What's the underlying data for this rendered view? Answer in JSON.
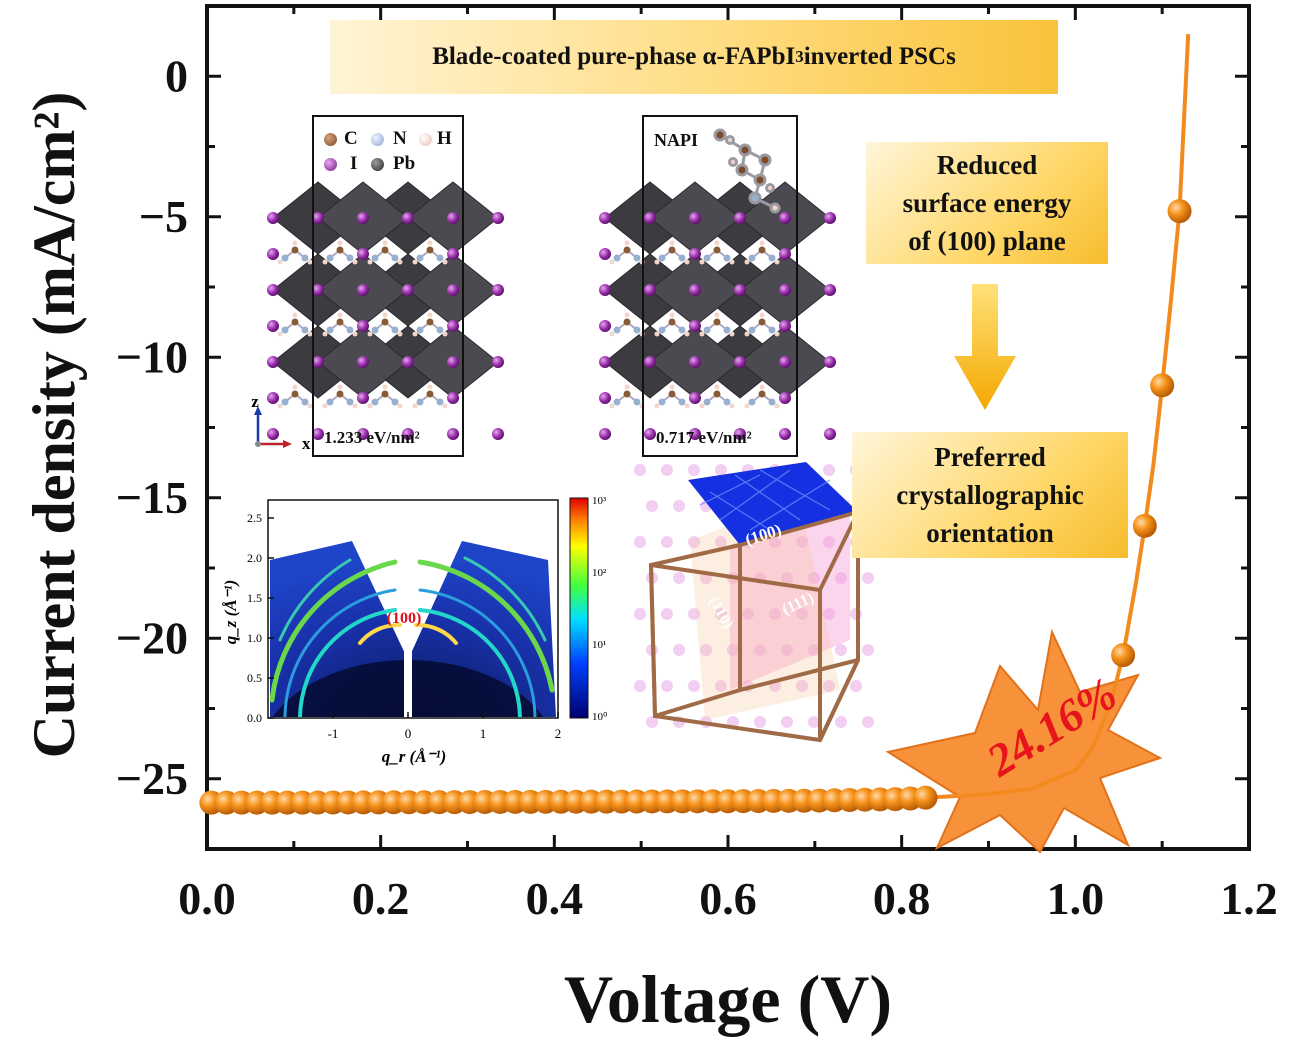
{
  "chart_data": {
    "type": "line",
    "xlabel": "Voltage (V)",
    "ylabel": "Current density (mA/cm²)",
    "xlim": [
      0.0,
      1.2
    ],
    "ylim": [
      -27.5,
      2.5
    ],
    "xticks": [
      "0.0",
      "0.2",
      "0.4",
      "0.6",
      "0.8",
      "1.0",
      "1.2"
    ],
    "yticks": [
      "0",
      "−5",
      "−10",
      "−15",
      "−20",
      "−25"
    ],
    "grid": false,
    "series": [
      {
        "color": "#f28a1e",
        "x": [
          0.0,
          0.1,
          0.2,
          0.3,
          0.4,
          0.5,
          0.6,
          0.7,
          0.8,
          0.9,
          0.95,
          1.0,
          1.02,
          1.04,
          1.055,
          1.07,
          1.08,
          1.09,
          1.1,
          1.11,
          1.12,
          1.13
        ],
        "y": [
          -25.85,
          -25.85,
          -25.84,
          -25.83,
          -25.82,
          -25.81,
          -25.8,
          -25.78,
          -25.72,
          -25.55,
          -25.35,
          -24.7,
          -23.9,
          -22.4,
          -20.6,
          -18.0,
          -16.0,
          -13.8,
          -11.0,
          -8.0,
          -4.8,
          1.5
        ]
      }
    ],
    "annotations": {
      "efficiency": "24.16%",
      "title_box": {
        "prefix": "Blade-coated pure-phase α-FAPbI",
        "subscript": "3",
        "suffix": " inverted PSCs"
      },
      "callout_top": [
        "Reduced",
        "surface energy",
        "of (100) plane"
      ],
      "callout_bottom": [
        "Preferred",
        "crystallographic",
        "orientation"
      ],
      "structure_left": {
        "energy": "1.233 eV/nm²",
        "legend": [
          "C",
          "N",
          "H",
          "I",
          "Pb"
        ],
        "axes": [
          "z",
          "x"
        ]
      },
      "structure_right": {
        "label": "NAPI",
        "energy": "0.717 eV/nm²"
      },
      "cube_planes": [
        "(100)",
        "(110)",
        "(111)"
      ]
    },
    "inset_giwaxs": {
      "xlabel": "q_r (Å⁻¹)",
      "ylabel": "q_z (Å⁻¹)",
      "xticks": [
        "-1",
        "0",
        "1",
        "2"
      ],
      "yticks": [
        "0.0",
        "0.5",
        "1.0",
        "1.5",
        "2.0",
        "2.5"
      ],
      "peak_label": "(100)",
      "colorbar_ticks": [
        "10⁰",
        "10¹",
        "10²",
        "10³"
      ]
    }
  },
  "colors": {
    "curve": "#f28a1e",
    "marker": "#f7941d",
    "starburst": "#f7923a",
    "efficiency_text": "#e8141b",
    "octahedra": "#3c3c40",
    "iodine": "#8e2fa0"
  }
}
